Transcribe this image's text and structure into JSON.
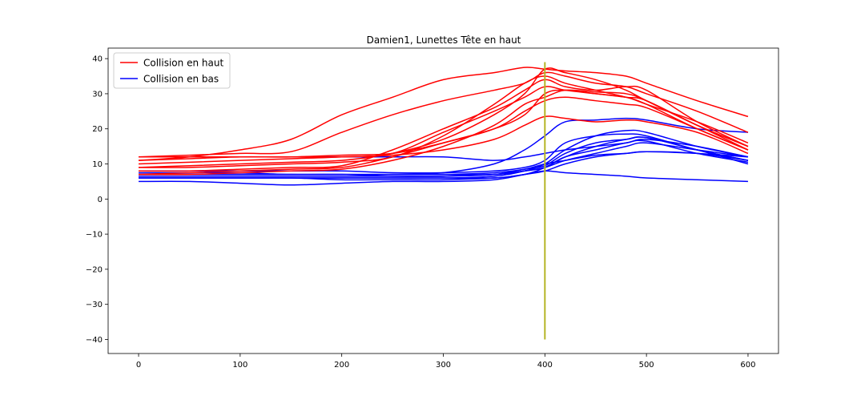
{
  "chart_data": {
    "type": "line",
    "title": "Damien1, Lunettes Tête en haut",
    "xlabel": "",
    "ylabel": "",
    "xlim": [
      -30,
      630
    ],
    "ylim": [
      -44,
      43
    ],
    "xticks": [
      0,
      100,
      200,
      300,
      400,
      500,
      600
    ],
    "yticks": [
      -40,
      -30,
      -20,
      -10,
      0,
      10,
      20,
      30,
      40
    ],
    "xtick_labels": [
      "0",
      "100",
      "200",
      "300",
      "400",
      "500",
      "600"
    ],
    "ytick_labels": [
      "−40",
      "−30",
      "−20",
      "−10",
      "0",
      "10",
      "20",
      "30",
      "40"
    ],
    "grid": false,
    "legend": {
      "position": "top-left",
      "entries": [
        {
          "label": "Collision en haut",
          "color": "#ff0000"
        },
        {
          "label": "Collision en bas",
          "color": "#0000ff"
        }
      ]
    },
    "vertical_line": {
      "x": 400,
      "y_range": [
        -40,
        39
      ],
      "color": "#b5b525"
    },
    "x": [
      0,
      50,
      100,
      150,
      200,
      250,
      300,
      350,
      380,
      400,
      420,
      450,
      480,
      500,
      550,
      600
    ],
    "series": [
      {
        "group": "Collision en haut",
        "color": "#ff0000",
        "values": [
          11,
          12,
          14,
          17,
          24,
          29,
          34,
          36,
          37.5,
          37,
          36.5,
          36,
          35,
          33,
          28,
          23.5
        ]
      },
      {
        "group": "Collision en haut",
        "color": "#ff0000",
        "values": [
          12,
          12.5,
          13,
          13.5,
          19,
          24,
          28,
          31,
          33,
          36,
          35,
          33,
          32,
          30,
          25,
          19
        ]
      },
      {
        "group": "Collision en haut",
        "color": "#ff0000",
        "values": [
          10,
          10.5,
          11,
          11.5,
          12,
          13,
          19,
          25,
          29,
          32,
          31,
          30,
          29,
          27,
          22,
          16
        ]
      },
      {
        "group": "Collision en haut",
        "color": "#ff0000",
        "values": [
          9,
          9.5,
          10,
          10.5,
          11,
          13,
          17,
          24,
          30,
          37,
          36,
          34,
          31,
          28,
          21,
          15
        ]
      },
      {
        "group": "Collision en haut",
        "color": "#ff0000",
        "values": [
          9,
          9,
          9.5,
          10,
          10.5,
          12,
          18,
          27,
          33,
          35,
          33,
          31,
          29,
          27,
          20,
          14
        ]
      },
      {
        "group": "Collision en haut",
        "color": "#ff0000",
        "values": [
          8,
          8,
          8.5,
          9,
          9.5,
          14,
          20,
          26,
          31,
          34,
          32,
          31,
          32,
          31,
          22,
          15
        ]
      },
      {
        "group": "Collision en haut",
        "color": "#ff0000",
        "values": [
          7,
          7.5,
          8,
          8.5,
          9,
          12,
          16,
          20,
          24,
          30,
          31,
          30,
          29,
          28,
          21,
          15
        ]
      },
      {
        "group": "Collision en haut",
        "color": "#ff0000",
        "values": [
          7,
          7,
          7.5,
          8,
          8.5,
          11,
          15,
          21,
          27,
          29,
          31,
          30.5,
          30,
          28,
          21,
          14
        ]
      },
      {
        "group": "Collision en haut",
        "color": "#ff0000",
        "values": [
          11,
          11.5,
          12,
          12,
          12.5,
          13,
          16,
          20,
          25,
          28,
          29,
          28,
          27,
          26,
          20,
          14
        ]
      },
      {
        "group": "Collision en haut",
        "color": "#ff0000",
        "values": [
          12,
          12,
          12,
          12,
          12,
          12.5,
          14,
          17,
          21,
          23.5,
          23,
          22,
          22.5,
          22,
          19,
          13
        ]
      },
      {
        "group": "Collision en bas",
        "color": "#0000ff",
        "values": [
          5,
          5,
          4.5,
          4,
          4.5,
          5,
          5,
          5.5,
          7,
          8,
          7.5,
          7,
          6.5,
          6,
          5.5,
          5
        ]
      },
      {
        "group": "Collision en bas",
        "color": "#0000ff",
        "values": [
          7,
          7,
          7,
          7,
          7,
          7,
          7.5,
          10,
          14,
          18,
          22,
          22.5,
          23,
          22.5,
          20,
          19
        ]
      },
      {
        "group": "Collision en bas",
        "color": "#0000ff",
        "values": [
          6,
          6,
          6,
          6,
          6,
          6,
          6,
          6.5,
          8,
          10,
          14,
          18,
          19.5,
          19,
          15,
          12
        ]
      },
      {
        "group": "Collision en bas",
        "color": "#0000ff",
        "values": [
          8,
          8,
          8,
          8,
          8,
          7.5,
          7.5,
          8,
          9,
          11,
          16,
          18,
          18.5,
          18,
          14,
          11
        ]
      },
      {
        "group": "Collision en bas",
        "color": "#0000ff",
        "values": [
          6.5,
          6.5,
          6.5,
          6.5,
          6.5,
          6.5,
          6.5,
          7,
          8.5,
          9.5,
          13,
          16,
          17,
          17.5,
          14,
          11
        ]
      },
      {
        "group": "Collision en bas",
        "color": "#0000ff",
        "values": [
          6,
          6,
          6,
          6,
          5.5,
          5.5,
          5.5,
          6,
          7,
          9,
          12,
          14,
          16,
          16.5,
          13,
          10.5
        ]
      },
      {
        "group": "Collision en bas",
        "color": "#0000ff",
        "values": [
          7.5,
          7.5,
          7.5,
          7,
          7,
          7,
          7,
          7.5,
          8.5,
          10,
          11,
          12.5,
          13,
          13.5,
          13,
          12
        ]
      },
      {
        "group": "Collision en bas",
        "color": "#0000ff",
        "values": [
          6,
          6,
          6,
          6,
          6,
          6,
          6,
          6,
          7,
          8,
          10,
          12,
          13,
          13.5,
          13,
          11
        ]
      },
      {
        "group": "Collision en bas",
        "color": "#0000ff",
        "values": [
          7,
          7,
          7,
          7,
          7,
          6.5,
          6.5,
          7,
          8,
          9,
          11,
          13,
          15,
          16,
          14,
          12
        ]
      },
      {
        "group": "Collision en bas",
        "color": "#0000ff",
        "values": [
          12,
          12,
          12,
          12,
          12,
          12,
          12,
          11,
          12,
          13,
          14,
          15,
          16,
          17,
          15,
          12
        ]
      },
      {
        "group": "Collision en bas",
        "color": "#0000ff",
        "values": [
          7,
          7,
          7,
          7,
          7,
          7,
          7,
          7,
          8,
          9,
          12,
          15,
          17,
          17.5,
          14,
          10
        ]
      }
    ]
  }
}
